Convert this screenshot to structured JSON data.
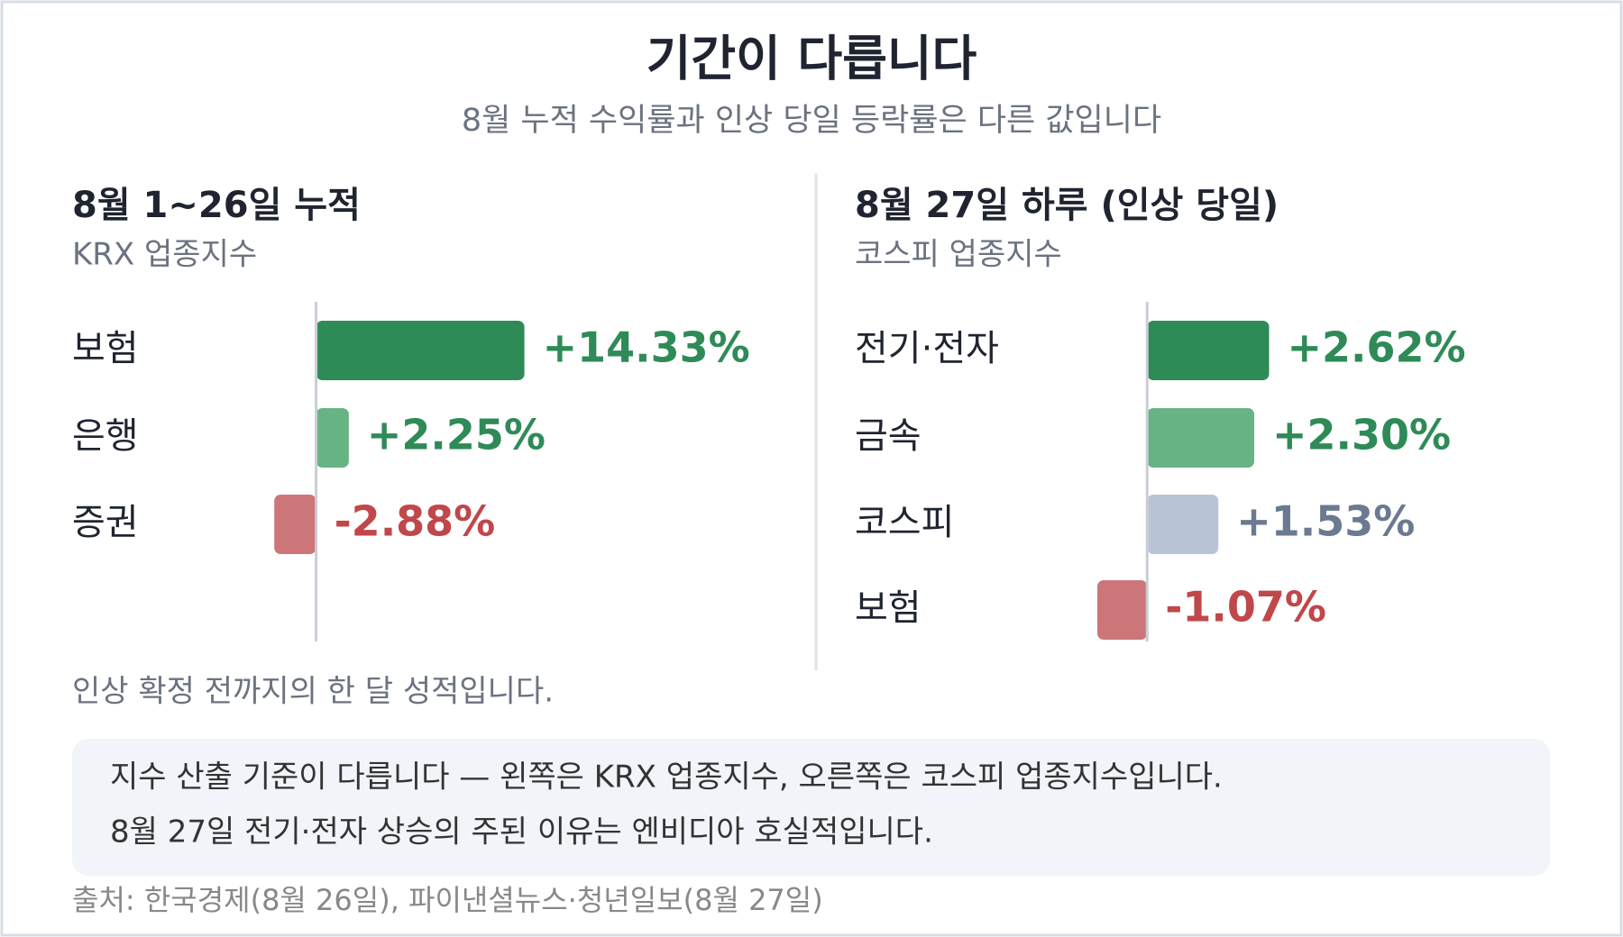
{
  "header": {
    "title": "기간이 다릅니다",
    "subtitle": "8월 누적 수익률과 인상 당일 등락률은 다른 값입니다"
  },
  "chart_data": [
    {
      "type": "barh",
      "title": "8월 1~26일 누적",
      "subtitle": "KRX 업종지수",
      "categories": [
        "보험",
        "은행",
        "증권"
      ],
      "values": [
        14.33,
        2.25,
        -2.88
      ],
      "value_labels": [
        "+14.33%",
        "+2.25%",
        "-2.88%"
      ],
      "colors": [
        "#2e8b57",
        "#66b383",
        "#cd7679"
      ],
      "label_colors": [
        "#2e8b57",
        "#2e8b57",
        "#c0474a"
      ],
      "xlim": [
        -5,
        20
      ],
      "note": "인상 확정 전까지의 한 달 성적입니다."
    },
    {
      "type": "barh",
      "title": "8월 27일 하루 (인상 당일)",
      "subtitle": "코스피 업종지수",
      "categories": [
        "전기·전자",
        "금속",
        "코스피",
        "보험"
      ],
      "values": [
        2.62,
        2.3,
        1.53,
        -1.07
      ],
      "value_labels": [
        "+2.62%",
        "+2.30%",
        "+1.53%",
        "-1.07%"
      ],
      "colors": [
        "#2e8b57",
        "#66b383",
        "#b8c4d6",
        "#cd7679"
      ],
      "label_colors": [
        "#2e8b57",
        "#2e8b57",
        "#6b7a90",
        "#c0474a"
      ],
      "xlim": [
        -2,
        6
      ]
    }
  ],
  "footer": {
    "lines": [
      "지수 산출 기준이 다릅니다 — 왼쪽은 KRX 업종지수, 오른쪽은 코스피 업종지수입니다.",
      "8월 27일 전기·전자 상승의 주된 이유는 엔비디아 호실적입니다."
    ],
    "source": "출처: 한국경제(8월 26일), 파이낸셜뉴스·청년일보(8월 27일)"
  }
}
